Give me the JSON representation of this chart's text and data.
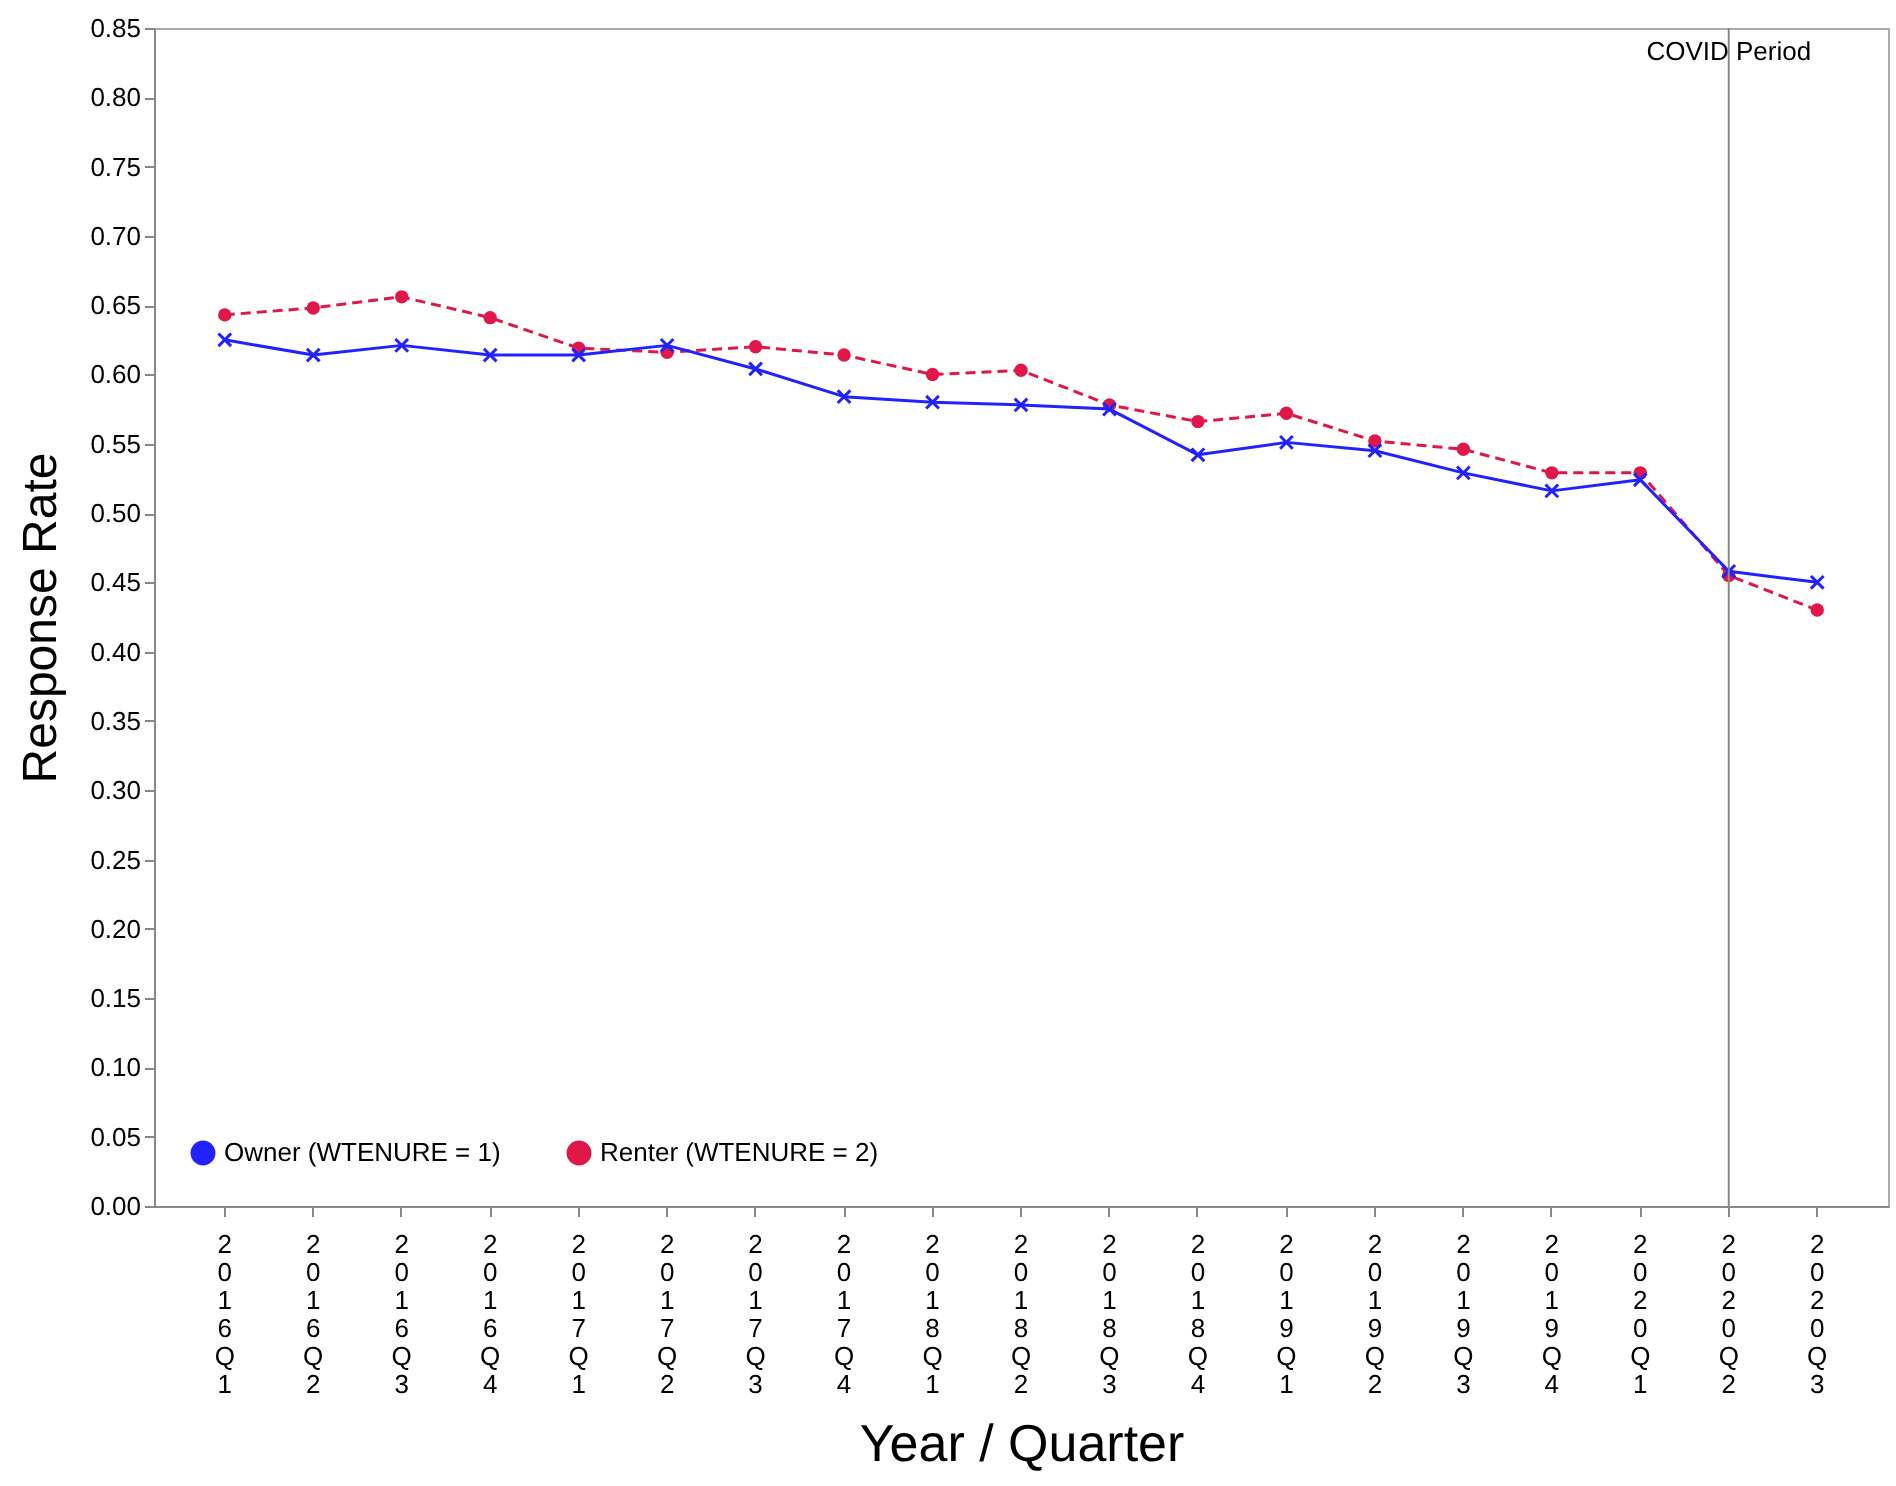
{
  "chart_data": {
    "type": "line",
    "xlabel": "Year / Quarter",
    "ylabel": "Response Rate",
    "categories": [
      "2016Q1",
      "2016Q2",
      "2016Q3",
      "2016Q4",
      "2017Q1",
      "2017Q2",
      "2017Q3",
      "2017Q4",
      "2018Q1",
      "2018Q2",
      "2018Q3",
      "2018Q4",
      "2019Q1",
      "2019Q2",
      "2019Q3",
      "2019Q4",
      "2020Q1",
      "2020Q2",
      "2020Q3"
    ],
    "series": [
      {
        "name": "Owner (WTENURE = 1)",
        "color": "#2222ff",
        "marker": "cross",
        "line_style": "solid",
        "values": [
          0.625,
          0.614,
          0.621,
          0.614,
          0.614,
          0.621,
          0.604,
          0.584,
          0.58,
          0.578,
          0.575,
          0.542,
          0.551,
          0.545,
          0.529,
          0.516,
          0.524,
          0.458,
          0.45
        ]
      },
      {
        "name": "Renter (WTENURE = 2)",
        "color": "#e0184a",
        "marker": "circle",
        "line_style": "dashed",
        "values": [
          0.643,
          0.648,
          0.656,
          0.641,
          0.619,
          0.616,
          0.62,
          0.614,
          0.6,
          0.603,
          0.578,
          0.566,
          0.572,
          0.552,
          0.546,
          0.529,
          0.529,
          0.455,
          0.43
        ]
      }
    ],
    "ylim": [
      0,
      0.85
    ],
    "yticks": [
      {
        "value": 0,
        "label": "0.00"
      },
      {
        "value": 0.05,
        "label": "0.05"
      },
      {
        "value": 0.1,
        "label": "0.10"
      },
      {
        "value": 0.15,
        "label": "0.15"
      },
      {
        "value": 0.2,
        "label": "0.20"
      },
      {
        "value": 0.25,
        "label": "0.25"
      },
      {
        "value": 0.3,
        "label": "0.30"
      },
      {
        "value": 0.35,
        "label": "0.35"
      },
      {
        "value": 0.4,
        "label": "0.40"
      },
      {
        "value": 0.45,
        "label": "0.45"
      },
      {
        "value": 0.5,
        "label": "0.50"
      },
      {
        "value": 0.55,
        "label": "0.55"
      },
      {
        "value": 0.6,
        "label": "0.60"
      },
      {
        "value": 0.65,
        "label": "0.65"
      },
      {
        "value": 0.7,
        "label": "0.70"
      },
      {
        "value": 0.75,
        "label": "0.75"
      },
      {
        "value": 0.8,
        "label": "0.80"
      },
      {
        "value": 0.85,
        "label": "0.85"
      }
    ],
    "ref_lines": [
      {
        "axis": "x",
        "value": "2020Q2",
        "label": "COVID Period",
        "color": "#888888"
      }
    ],
    "grid": false,
    "legend": "bottom left"
  }
}
